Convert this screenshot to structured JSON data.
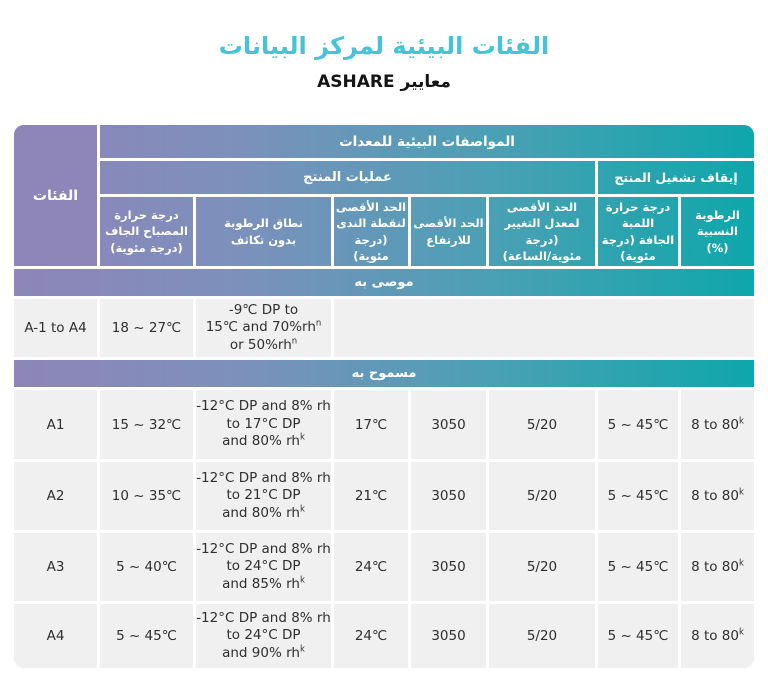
{
  "page": {
    "title": "الفئات البيئية لمركز البيانات",
    "subtitle": "معايير ASHARE"
  },
  "colors": {
    "title_cyan": "#44c3d9",
    "purple": "#8e85b8",
    "teal": "#0ea7ab",
    "row_bg": "#f1f0f1"
  },
  "table": {
    "corner_header": "الفئات",
    "group_headers": {
      "env_specs": "المواصفات البيئية للمعدات",
      "product_ops": "عمليات المنتج",
      "product_off": "إيقاف تشغيل المنتج"
    },
    "column_headers": [
      "درجة حرارة\nالمصباح الجاف\n(درجة مئوية)",
      "نطاق الرطوبة\nبدون تكاثف",
      "الحد الأقصى\nلنقطة الندى\n(درجة مئوية)",
      "الحد الأقصى\nللارتفاع",
      "الحد الأقصى\nلمعدل التغيير\n(درجة\nمئوية/الساعة)",
      "درجة حرارة اللمبة\nالجافة (درجة مئوية)",
      "الرطوبة النسبية\n(%)"
    ],
    "bands": {
      "recommended": "موصى به",
      "allowed": "مسموح به"
    },
    "recommended_row": {
      "category": "A-1 to A4",
      "dry_bulb": "18 ~ 27℃",
      "humidity": {
        "line1": "-9℃ DP to",
        "line2": "15℃ and 70%rh",
        "line2_sup": "n",
        "line3": "or 50%rh",
        "line3_sup": "n"
      }
    },
    "allowed_rows": [
      {
        "category": "A1",
        "dry_bulb": "15 ~ 32℃",
        "humidity": {
          "line1": "-12°C DP and 8% rh",
          "line2": "to 17°C DP",
          "line2_sup": "",
          "line3": "and 80% rh",
          "line3_sup": "k"
        },
        "dew_point": "17℃",
        "altitude": "3050",
        "rate": "5/20",
        "off_temp": "5 ~ 45℃",
        "rh": {
          "text": "8 to 80",
          "sup": "k"
        }
      },
      {
        "category": "A2",
        "dry_bulb": "10 ~ 35℃",
        "humidity": {
          "line1": "-12°C DP and 8% rh",
          "line2": "to 21°C DP",
          "line2_sup": "",
          "line3": "and 80% rh",
          "line3_sup": "k"
        },
        "dew_point": "21℃",
        "altitude": "3050",
        "rate": "5/20",
        "off_temp": "5 ~ 45℃",
        "rh": {
          "text": "8 to 80",
          "sup": "k"
        }
      },
      {
        "category": "A3",
        "dry_bulb": "5 ~ 40℃",
        "humidity": {
          "line1": "-12°C DP and 8% rh",
          "line2": "to 24°C DP",
          "line2_sup": "",
          "line3": "and 85% rh",
          "line3_sup": "k"
        },
        "dew_point": "24℃",
        "altitude": "3050",
        "rate": "5/20",
        "off_temp": "5 ~ 45℃",
        "rh": {
          "text": "8 to 80",
          "sup": "k"
        }
      },
      {
        "category": "A4",
        "dry_bulb": "5 ~ 45℃",
        "humidity": {
          "line1": "-12°C DP and 8% rh",
          "line2": "to 24°C DP",
          "line2_sup": "",
          "line3": "and 90% rh",
          "line3_sup": "k"
        },
        "dew_point": "24℃",
        "altitude": "3050",
        "rate": "5/20",
        "off_temp": "5 ~ 45℃",
        "rh": {
          "text": "8 to 80",
          "sup": "k"
        }
      }
    ]
  }
}
